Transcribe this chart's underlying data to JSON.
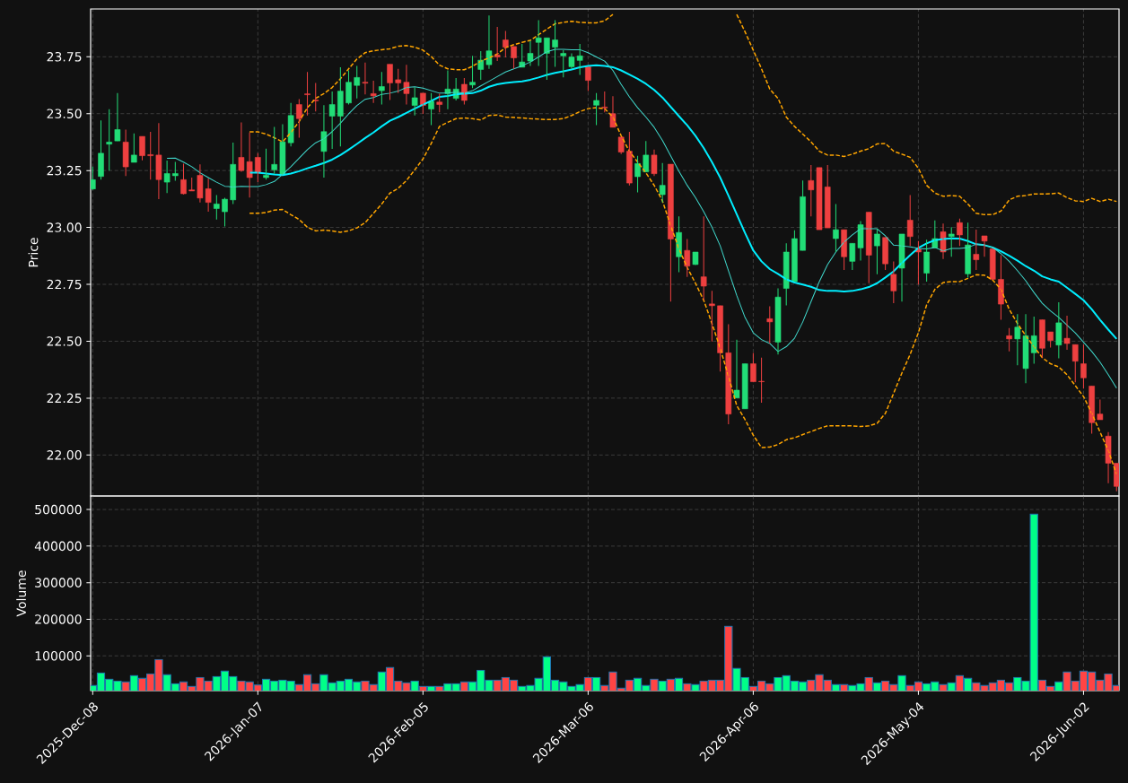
{
  "chart_data": [
    {
      "type": "candlestick",
      "ylabel": "Price",
      "categories": [
        null,
        null,
        null,
        null,
        null,
        null,
        null,
        null,
        null,
        null,
        null,
        null,
        null,
        null,
        null,
        null,
        null,
        null,
        null,
        null,
        null,
        null,
        null,
        null,
        null,
        null,
        null,
        null,
        null,
        null,
        null,
        null,
        null,
        null,
        null,
        null,
        null,
        null,
        null,
        null,
        null,
        null,
        null,
        null,
        null,
        null,
        null,
        null,
        null,
        null,
        null,
        null,
        null,
        null,
        null,
        null,
        null,
        null,
        null,
        null,
        null,
        null,
        null,
        null,
        null,
        null,
        null,
        null,
        null,
        null,
        null,
        null,
        null,
        null,
        null,
        null,
        null,
        null,
        null,
        null,
        null,
        null,
        null,
        null,
        null,
        null,
        null,
        null,
        null,
        null,
        null,
        null,
        null,
        null,
        null,
        null,
        null,
        null,
        null,
        null,
        null,
        null,
        null,
        null,
        null,
        null,
        null,
        null,
        null,
        null,
        null,
        null,
        null,
        null,
        null,
        null,
        null,
        null,
        null,
        null,
        null,
        null,
        null,
        null,
        null
      ],
      "ohlc": [
        [
          23.169,
          23.267,
          23.165,
          23.21
        ],
        [
          23.224,
          23.47,
          23.21,
          23.326
        ],
        [
          23.366,
          23.52,
          23.25,
          23.375
        ],
        [
          23.38,
          23.59,
          23.38,
          23.43
        ],
        [
          23.375,
          23.43,
          23.226,
          23.266
        ],
        [
          23.286,
          23.413,
          23.286,
          23.318
        ],
        [
          23.4,
          23.4,
          23.295,
          23.315
        ],
        [
          23.32,
          23.42,
          23.21,
          23.315
        ],
        [
          23.318,
          23.458,
          23.124,
          23.21
        ],
        [
          23.199,
          23.294,
          23.151,
          23.237
        ],
        [
          23.227,
          23.288,
          23.205,
          23.237
        ],
        [
          23.21,
          23.28,
          23.145,
          23.148
        ],
        [
          23.165,
          23.219,
          23.16,
          23.16
        ],
        [
          23.229,
          23.277,
          23.11,
          23.129
        ],
        [
          23.17,
          23.215,
          23.069,
          23.11
        ],
        [
          23.083,
          23.142,
          23.035,
          23.103
        ],
        [
          23.069,
          23.13,
          23.004,
          23.124
        ],
        [
          23.121,
          23.373,
          23.103,
          23.277
        ],
        [
          23.308,
          23.461,
          23.245,
          23.25
        ],
        [
          23.289,
          23.417,
          23.131,
          23.219
        ],
        [
          23.308,
          23.326,
          23.199,
          23.24
        ],
        [
          23.219,
          23.346,
          23.21,
          23.229
        ],
        [
          23.253,
          23.442,
          23.236,
          23.277
        ],
        [
          23.233,
          23.454,
          23.233,
          23.376
        ],
        [
          23.372,
          23.547,
          23.356,
          23.492
        ],
        [
          23.54,
          23.564,
          23.394,
          23.478
        ],
        [
          23.587,
          23.683,
          23.492,
          23.583
        ],
        [
          23.56,
          23.635,
          23.51,
          23.556
        ],
        [
          23.334,
          23.537,
          23.219,
          23.421
        ],
        [
          23.489,
          23.597,
          23.345,
          23.54
        ],
        [
          23.489,
          23.704,
          23.356,
          23.599
        ],
        [
          23.547,
          23.69,
          23.54,
          23.638
        ],
        [
          23.624,
          23.71,
          23.567,
          23.659
        ],
        [
          23.638,
          23.724,
          23.585,
          23.634
        ],
        [
          23.588,
          23.645,
          23.547,
          23.578
        ],
        [
          23.601,
          23.683,
          23.54,
          23.619
        ],
        [
          23.717,
          23.717,
          23.56,
          23.635
        ],
        [
          23.649,
          23.697,
          23.59,
          23.635
        ],
        [
          23.638,
          23.715,
          23.54,
          23.588
        ],
        [
          23.536,
          23.615,
          23.492,
          23.57
        ],
        [
          23.59,
          23.59,
          23.499,
          23.536
        ],
        [
          23.52,
          23.59,
          23.45,
          23.554
        ],
        [
          23.551,
          23.588,
          23.506,
          23.54
        ],
        [
          23.588,
          23.69,
          23.52,
          23.608
        ],
        [
          23.567,
          23.656,
          23.558,
          23.608
        ],
        [
          23.629,
          23.656,
          23.54,
          23.558
        ],
        [
          23.626,
          23.754,
          23.612,
          23.638
        ],
        [
          23.694,
          23.775,
          23.649,
          23.735
        ],
        [
          23.715,
          23.931,
          23.697,
          23.776
        ],
        [
          23.758,
          23.881,
          23.731,
          23.749
        ],
        [
          23.824,
          23.863,
          23.747,
          23.792
        ],
        [
          23.795,
          23.795,
          23.697,
          23.745
        ],
        [
          23.704,
          23.806,
          23.704,
          23.727
        ],
        [
          23.731,
          23.82,
          23.71,
          23.765
        ],
        [
          23.813,
          23.911,
          23.71,
          23.833
        ],
        [
          23.765,
          23.833,
          23.649,
          23.833
        ],
        [
          23.792,
          23.911,
          23.706,
          23.824
        ],
        [
          23.754,
          23.779,
          23.659,
          23.765
        ],
        [
          23.706,
          23.765,
          23.697,
          23.749
        ],
        [
          23.734,
          23.806,
          23.67,
          23.754
        ],
        [
          23.706,
          23.706,
          23.599,
          23.646
        ],
        [
          23.537,
          23.59,
          23.45,
          23.558
        ],
        [
          23.529,
          23.597,
          23.506,
          23.525
        ],
        [
          23.5,
          23.577,
          23.44,
          23.44
        ],
        [
          23.397,
          23.397,
          23.322,
          23.331
        ],
        [
          23.335,
          23.42,
          23.185,
          23.195
        ],
        [
          23.223,
          23.315,
          23.154,
          23.281
        ],
        [
          23.244,
          23.38,
          23.244,
          23.318
        ],
        [
          23.318,
          23.342,
          23.226,
          23.236
        ],
        [
          23.144,
          23.283,
          23.11,
          23.185
        ],
        [
          23.278,
          23.278,
          22.674,
          22.949
        ],
        [
          22.871,
          23.049,
          22.803,
          22.978
        ],
        [
          22.899,
          22.949,
          22.783,
          22.83
        ],
        [
          22.837,
          22.892,
          22.835,
          22.892
        ],
        [
          22.783,
          23.049,
          22.68,
          22.742
        ],
        [
          22.664,
          22.721,
          22.499,
          22.656
        ],
        [
          22.656,
          22.656,
          22.367,
          22.449
        ],
        [
          22.449,
          22.575,
          22.135,
          22.18
        ],
        [
          22.251,
          22.507,
          22.251,
          22.285
        ],
        [
          22.203,
          22.401,
          22.203,
          22.401
        ],
        [
          22.401,
          22.449,
          22.322,
          22.322
        ],
        [
          22.324,
          22.428,
          22.23,
          22.322
        ],
        [
          22.599,
          22.653,
          22.49,
          22.585
        ],
        [
          22.496,
          22.732,
          22.442,
          22.694
        ],
        [
          22.732,
          22.93,
          22.657,
          22.892
        ],
        [
          22.762,
          22.987,
          22.762,
          22.951
        ],
        [
          22.899,
          23.206,
          22.899,
          23.135
        ],
        [
          23.206,
          23.274,
          23.049,
          23.165
        ],
        [
          23.263,
          23.263,
          22.99,
          22.99
        ],
        [
          23.178,
          23.274,
          22.998,
          22.998
        ],
        [
          22.951,
          23.103,
          22.892,
          22.99
        ],
        [
          22.99,
          22.99,
          22.813,
          22.871
        ],
        [
          22.851,
          22.93,
          22.813,
          22.93
        ],
        [
          22.91,
          23.028,
          22.854,
          23.012
        ],
        [
          23.067,
          23.067,
          22.755,
          22.878
        ],
        [
          22.919,
          22.994,
          22.794,
          22.971
        ],
        [
          22.956,
          22.956,
          22.813,
          22.84
        ],
        [
          22.794,
          22.851,
          22.667,
          22.721
        ],
        [
          22.821,
          22.971,
          22.674,
          22.971
        ],
        [
          23.032,
          23.142,
          22.919,
          22.96
        ],
        [
          22.905,
          22.94,
          22.749,
          22.892
        ],
        [
          22.799,
          22.946,
          22.762,
          22.892
        ],
        [
          22.91,
          23.031,
          22.91,
          22.951
        ],
        [
          22.981,
          23.017,
          22.861,
          22.892
        ],
        [
          22.96,
          23.001,
          22.871,
          22.971
        ],
        [
          23.021,
          23.039,
          22.919,
          22.967
        ],
        [
          22.796,
          23.021,
          22.78,
          22.923
        ],
        [
          22.882,
          22.99,
          22.813,
          22.858
        ],
        [
          22.963,
          22.963,
          22.871,
          22.94
        ],
        [
          22.906,
          22.906,
          22.772,
          22.772
        ],
        [
          22.772,
          22.878,
          22.594,
          22.663
        ],
        [
          22.524,
          22.558,
          22.455,
          22.51
        ],
        [
          22.51,
          22.619,
          22.394,
          22.562
        ],
        [
          22.38,
          22.619,
          22.316,
          22.524
        ],
        [
          22.449,
          22.608,
          22.401,
          22.524
        ],
        [
          22.594,
          22.594,
          22.428,
          22.469
        ],
        [
          22.541,
          22.541,
          22.472,
          22.503
        ],
        [
          22.483,
          22.671,
          22.425,
          22.581
        ],
        [
          22.513,
          22.612,
          22.462,
          22.49
        ],
        [
          22.485,
          22.485,
          22.319,
          22.412
        ],
        [
          22.401,
          22.485,
          22.292,
          22.339
        ],
        [
          22.303,
          22.303,
          22.094,
          22.142
        ],
        [
          22.18,
          22.244,
          22.155,
          22.155
        ],
        [
          22.083,
          22.101,
          21.876,
          21.964
        ],
        [
          21.964,
          21.964,
          21.841,
          21.862
        ]
      ],
      "colors": [
        "#22dd77",
        "#22dd77",
        "#22dd77",
        "#22dd77",
        "#ee4040",
        "#22dd77",
        "#ee4040",
        "#ee4040",
        "#ee4040",
        "#22dd77",
        "#22dd77",
        "#ee4040",
        "#ee4040",
        "#ee4040",
        "#ee4040",
        "#22dd77",
        "#22dd77",
        "#22dd77",
        "#ee4040",
        "#ee4040",
        "#ee4040",
        "#22dd77",
        "#22dd77",
        "#22dd77",
        "#22dd77",
        "#ee4040",
        "#ee4040",
        "#ee4040",
        "#22dd77",
        "#22dd77",
        "#22dd77",
        "#22dd77",
        "#22dd77",
        "#ee4040",
        "#ee4040",
        "#22dd77",
        "#ee4040",
        "#ee4040",
        "#ee4040",
        "#22dd77",
        "#ee4040",
        "#22dd77",
        "#ee4040",
        "#22dd77",
        "#22dd77",
        "#ee4040",
        "#22dd77",
        "#22dd77",
        "#22dd77",
        "#ee4040",
        "#ee4040",
        "#ee4040",
        "#22dd77",
        "#22dd77",
        "#22dd77",
        "#22dd77",
        "#22dd77",
        "#22dd77",
        "#22dd77",
        "#22dd77",
        "#ee4040",
        "#22dd77",
        "#ee4040",
        "#ee4040",
        "#ee4040",
        "#ee4040",
        "#22dd77",
        "#22dd77",
        "#ee4040",
        "#22dd77",
        "#ee4040",
        "#22dd77",
        "#ee4040",
        "#22dd77",
        "#ee4040",
        "#ee4040",
        "#ee4040",
        "#ee4040",
        "#22dd77",
        "#22dd77",
        "#ee4040",
        "#ee4040",
        "#ee4040",
        "#22dd77",
        "#22dd77",
        "#22dd77",
        "#22dd77",
        "#ee4040",
        "#ee4040",
        "#ee4040",
        "#22dd77",
        "#ee4040",
        "#22dd77",
        "#22dd77",
        "#ee4040",
        "#22dd77",
        "#ee4040",
        "#ee4040",
        "#22dd77",
        "#ee4040",
        "#ee4040",
        "#22dd77",
        "#22dd77",
        "#ee4040",
        "#22dd77",
        "#ee4040",
        "#22dd77",
        "#ee4040",
        "#ee4040",
        "#ee4040",
        "#ee4040",
        "#ee4040",
        "#22dd77",
        "#22dd77",
        "#22dd77",
        "#ee4040",
        "#ee4040",
        "#22dd77",
        "#ee4040",
        "#ee4040",
        "#ee4040",
        "#ee4040",
        "#ee4040",
        "#ee4040",
        "#ee4040"
      ],
      "ylim": [
        21.82,
        23.96
      ],
      "yticks": [
        {
          "value": 22,
          "label": "22.00"
        },
        {
          "value": 22.25,
          "label": "22.25"
        },
        {
          "value": 22.5,
          "label": "22.50"
        },
        {
          "value": 22.75,
          "label": "22.75"
        },
        {
          "value": 23,
          "label": "23.00"
        },
        {
          "value": 23.25,
          "label": "23.25"
        },
        {
          "value": 23.5,
          "label": "23.50"
        },
        {
          "value": 23.75,
          "label": "23.75"
        }
      ],
      "grid": true,
      "tick_labels": "y",
      "series": [
        {
          "type": "line",
          "color": "#00eeff",
          "values": [
            null,
            null,
            null,
            null,
            null,
            null,
            null,
            null,
            null,
            null,
            null,
            null,
            null,
            null,
            null,
            null,
            null,
            null,
            null,
            23.241,
            23.241,
            23.237,
            23.233,
            23.23,
            23.237,
            23.247,
            23.26,
            23.271,
            23.283,
            23.298,
            23.318,
            23.342,
            23.367,
            23.393,
            23.417,
            23.444,
            23.469,
            23.485,
            23.503,
            23.522,
            23.54,
            23.556,
            23.574,
            23.578,
            23.585,
            23.588,
            23.59,
            23.601,
            23.618,
            23.629,
            23.635,
            23.639,
            23.642,
            23.649,
            23.659,
            23.67,
            23.679,
            23.686,
            23.694,
            23.704,
            23.71,
            23.713,
            23.71,
            23.704,
            23.69,
            23.672,
            23.653,
            23.631,
            23.604,
            23.571,
            23.53,
            23.489,
            23.449,
            23.403,
            23.349,
            23.287,
            23.219,
            23.14,
            23.058,
            22.976,
            22.899,
            22.851,
            22.817,
            22.796,
            22.772,
            22.758,
            22.749,
            22.739,
            22.725,
            22.721,
            22.721,
            22.719,
            22.721,
            22.728,
            22.738,
            22.755,
            22.78,
            22.807,
            22.844,
            22.878,
            22.91,
            22.93,
            22.944,
            22.949,
            22.952,
            22.951,
            22.94,
            22.926,
            22.922,
            22.912,
            22.895,
            22.876,
            22.854,
            22.83,
            22.81,
            22.785,
            22.772,
            22.762,
            22.735,
            22.708,
            22.68,
            22.64,
            22.594,
            22.551,
            22.51
          ]
        },
        {
          "type": "line",
          "color": "#40d8cc",
          "values": [
            null,
            null,
            null,
            null,
            null,
            null,
            null,
            null,
            null,
            23.304,
            23.305,
            23.287,
            23.267,
            23.24,
            23.219,
            23.199,
            23.181,
            23.178,
            23.181,
            23.18,
            23.18,
            23.188,
            23.202,
            23.233,
            23.267,
            23.304,
            23.342,
            23.372,
            23.39,
            23.421,
            23.458,
            23.499,
            23.536,
            23.563,
            23.571,
            23.585,
            23.59,
            23.599,
            23.615,
            23.618,
            23.612,
            23.601,
            23.59,
            23.59,
            23.594,
            23.59,
            23.601,
            23.622,
            23.642,
            23.663,
            23.683,
            23.697,
            23.71,
            23.727,
            23.749,
            23.772,
            23.783,
            23.783,
            23.781,
            23.781,
            23.768,
            23.749,
            23.731,
            23.69,
            23.629,
            23.574,
            23.526,
            23.485,
            23.44,
            23.383,
            23.315,
            23.247,
            23.185,
            23.131,
            23.069,
            23.001,
            22.919,
            22.81,
            22.701,
            22.605,
            22.537,
            22.507,
            22.49,
            22.455,
            22.476,
            22.513,
            22.585,
            22.674,
            22.762,
            22.837,
            22.892,
            22.936,
            22.967,
            22.994,
            22.994,
            22.994,
            22.963,
            22.922,
            22.919,
            22.915,
            22.908,
            22.906,
            22.912,
            22.897,
            22.908,
            22.908,
            22.912,
            22.926,
            22.922,
            22.912,
            22.885,
            22.851,
            22.81,
            22.766,
            22.714,
            22.667,
            22.633,
            22.605,
            22.571,
            22.537,
            22.496,
            22.455,
            22.408,
            22.353,
            22.294
          ]
        },
        {
          "type": "line",
          "color": "#ffa500",
          "line_style": "dashed",
          "values": [
            null,
            null,
            null,
            null,
            null,
            null,
            null,
            null,
            null,
            null,
            null,
            null,
            null,
            null,
            null,
            null,
            null,
            null,
            null,
            23.42,
            23.42,
            23.41,
            23.394,
            23.376,
            23.417,
            23.465,
            23.526,
            23.567,
            23.588,
            23.615,
            23.653,
            23.697,
            23.74,
            23.768,
            23.776,
            23.781,
            23.785,
            23.796,
            23.799,
            23.792,
            23.779,
            23.751,
            23.713,
            23.697,
            23.693,
            23.693,
            23.708,
            23.731,
            23.745,
            23.762,
            23.79,
            23.803,
            23.813,
            23.822,
            23.847,
            23.871,
            23.895,
            23.901,
            23.906,
            23.901,
            23.899,
            23.899,
            23.908,
            23.936,
            null,
            null,
            null,
            null,
            null,
            null,
            null,
            null,
            null,
            null,
            null,
            null,
            null,
            null,
            23.936,
            23.86,
            23.779,
            23.697,
            23.608,
            23.567,
            23.485,
            23.444,
            23.41,
            23.376,
            23.335,
            23.318,
            23.318,
            23.312,
            23.322,
            23.335,
            23.346,
            23.367,
            23.369,
            23.335,
            23.322,
            23.308,
            23.26,
            23.185,
            23.151,
            23.137,
            23.14,
            23.137,
            23.103,
            23.062,
            23.056,
            23.056,
            23.072,
            23.121,
            23.137,
            23.14,
            23.147,
            23.147,
            23.148,
            23.151,
            23.131,
            23.117,
            23.114,
            23.128,
            23.114,
            23.124,
            23.114
          ]
        },
        {
          "type": "line",
          "color": "#ffa500",
          "line_style": "dashed",
          "values": [
            null,
            null,
            null,
            null,
            null,
            null,
            null,
            null,
            null,
            null,
            null,
            null,
            null,
            null,
            null,
            null,
            null,
            null,
            null,
            23.062,
            23.062,
            23.066,
            23.076,
            23.079,
            23.056,
            23.035,
            23.001,
            22.985,
            22.988,
            22.985,
            22.979,
            22.985,
            22.998,
            23.021,
            23.062,
            23.103,
            23.151,
            23.172,
            23.206,
            23.253,
            23.301,
            23.369,
            23.444,
            23.462,
            23.478,
            23.481,
            23.478,
            23.472,
            23.492,
            23.494,
            23.485,
            23.483,
            23.481,
            23.478,
            23.476,
            23.474,
            23.474,
            23.478,
            23.492,
            23.509,
            23.522,
            23.526,
            23.522,
            23.485,
            23.403,
            23.335,
            23.287,
            23.24,
            23.185,
            23.117,
            23.008,
            22.906,
            22.824,
            22.755,
            22.68,
            22.578,
            22.469,
            22.346,
            22.217,
            22.156,
            22.087,
            22.033,
            22.035,
            22.046,
            22.067,
            22.076,
            22.09,
            22.103,
            22.117,
            22.128,
            22.128,
            22.128,
            22.128,
            22.125,
            22.128,
            22.139,
            22.183,
            22.271,
            22.36,
            22.442,
            22.537,
            22.66,
            22.728,
            22.758,
            22.762,
            22.762,
            22.776,
            22.792,
            22.79,
            22.769,
            22.728,
            22.64,
            22.578,
            22.524,
            22.476,
            22.428,
            22.401,
            22.387,
            22.353,
            22.305,
            22.257,
            22.183,
            22.101,
            22.019,
            21.916
          ]
        }
      ]
    },
    {
      "type": "bar",
      "ylabel": "Volume",
      "categories": [
        "2025-Dec-08",
        null,
        null,
        null,
        null,
        null,
        null,
        null,
        null,
        null,
        null,
        null,
        null,
        null,
        null,
        null,
        null,
        null,
        null,
        null,
        "2026-Jan-07",
        null,
        null,
        null,
        null,
        null,
        null,
        null,
        null,
        null,
        null,
        null,
        null,
        null,
        null,
        null,
        null,
        null,
        null,
        null,
        "2026-Feb-05",
        null,
        null,
        null,
        null,
        null,
        null,
        null,
        null,
        null,
        null,
        null,
        null,
        null,
        null,
        null,
        null,
        null,
        null,
        null,
        "2026-Mar-06",
        null,
        null,
        null,
        null,
        null,
        null,
        null,
        null,
        null,
        null,
        null,
        null,
        null,
        null,
        null,
        null,
        null,
        null,
        null,
        "2026-Apr-06",
        null,
        null,
        null,
        null,
        null,
        null,
        null,
        null,
        null,
        null,
        null,
        null,
        null,
        null,
        null,
        null,
        null,
        null,
        null,
        "2026-May-04",
        null,
        null,
        null,
        null,
        null,
        null,
        null,
        null,
        null,
        null,
        null,
        null,
        null,
        null,
        null,
        null,
        null,
        null,
        null,
        "2026-Jun-02",
        null,
        null,
        null,
        null
      ],
      "values": [
        18800,
        53200,
        36000,
        31100,
        28600,
        45800,
        38400,
        50700,
        90000,
        48300,
        23700,
        28600,
        16400,
        40900,
        31100,
        43400,
        58100,
        43400,
        31100,
        28600,
        20500,
        36000,
        31100,
        33500,
        31100,
        21300,
        48300,
        23700,
        48300,
        26200,
        31100,
        36000,
        28600,
        31100,
        21300,
        55600,
        67900,
        31100,
        26200,
        31100,
        16400,
        16400,
        16400,
        23700,
        23700,
        28600,
        28600,
        60500,
        33500,
        33500,
        40900,
        33500,
        16400,
        18800,
        38400,
        97300,
        33500,
        28600,
        16400,
        21300,
        40900,
        40900,
        18800,
        55600,
        11500,
        33500,
        38400,
        18800,
        36000,
        31100,
        36000,
        38400,
        23700,
        21300,
        31100,
        33500,
        33500,
        180800,
        65400,
        40900,
        16400,
        31100,
        23700,
        40900,
        45800,
        31100,
        28600,
        33500,
        48300,
        33500,
        21300,
        21300,
        18800,
        23700,
        40900,
        26200,
        31100,
        21300,
        45800,
        18800,
        28600,
        23700,
        28600,
        21300,
        26200,
        45800,
        38400,
        26200,
        18800,
        26200,
        33500,
        26200,
        40900,
        31100,
        487500,
        33500,
        16400,
        28600,
        55600,
        31100,
        58100,
        55600,
        33500,
        50700,
        18800
      ],
      "colors": [
        "#00ff88",
        "#00ff88",
        "#00ff88",
        "#00ff88",
        "#ff4444",
        "#00ff88",
        "#ff4444",
        "#ff4444",
        "#ff4444",
        "#00ff88",
        "#00ff88",
        "#ff4444",
        "#ff4444",
        "#ff4444",
        "#ff4444",
        "#00ff88",
        "#00ff88",
        "#00ff88",
        "#ff4444",
        "#ff4444",
        "#ff4444",
        "#00ff88",
        "#00ff88",
        "#00ff88",
        "#00ff88",
        "#ff4444",
        "#ff4444",
        "#ff4444",
        "#00ff88",
        "#00ff88",
        "#00ff88",
        "#00ff88",
        "#00ff88",
        "#ff4444",
        "#ff4444",
        "#00ff88",
        "#ff4444",
        "#ff4444",
        "#ff4444",
        "#00ff88",
        "#ff4444",
        "#00ff88",
        "#ff4444",
        "#00ff88",
        "#00ff88",
        "#ff4444",
        "#00ff88",
        "#00ff88",
        "#00ff88",
        "#ff4444",
        "#ff4444",
        "#ff4444",
        "#00ff88",
        "#00ff88",
        "#00ff88",
        "#00ff88",
        "#00ff88",
        "#00ff88",
        "#00ff88",
        "#00ff88",
        "#ff4444",
        "#00ff88",
        "#ff4444",
        "#ff4444",
        "#ff4444",
        "#ff4444",
        "#00ff88",
        "#00ff88",
        "#ff4444",
        "#00ff88",
        "#ff4444",
        "#00ff88",
        "#ff4444",
        "#00ff88",
        "#ff4444",
        "#ff4444",
        "#ff4444",
        "#ff4444",
        "#00ff88",
        "#00ff88",
        "#ff4444",
        "#ff4444",
        "#ff4444",
        "#00ff88",
        "#00ff88",
        "#00ff88",
        "#00ff88",
        "#ff4444",
        "#ff4444",
        "#ff4444",
        "#00ff88",
        "#ff4444",
        "#00ff88",
        "#00ff88",
        "#ff4444",
        "#00ff88",
        "#ff4444",
        "#ff4444",
        "#00ff88",
        "#ff4444",
        "#ff4444",
        "#00ff88",
        "#00ff88",
        "#ff4444",
        "#00ff88",
        "#ff4444",
        "#00ff88",
        "#ff4444",
        "#ff4444",
        "#ff4444",
        "#ff4444",
        "#ff4444",
        "#00ff88",
        "#00ff88",
        "#00ff88",
        "#ff4444",
        "#ff4444",
        "#00ff88",
        "#ff4444",
        "#ff4444",
        "#ff4444",
        "#ff4444",
        "#ff4444",
        "#ff4444",
        "#ff4444"
      ],
      "ylim": [
        5000,
        537000
      ],
      "yticks": [
        100000,
        200000,
        300000,
        400000,
        500000
      ],
      "grid": true
    }
  ]
}
